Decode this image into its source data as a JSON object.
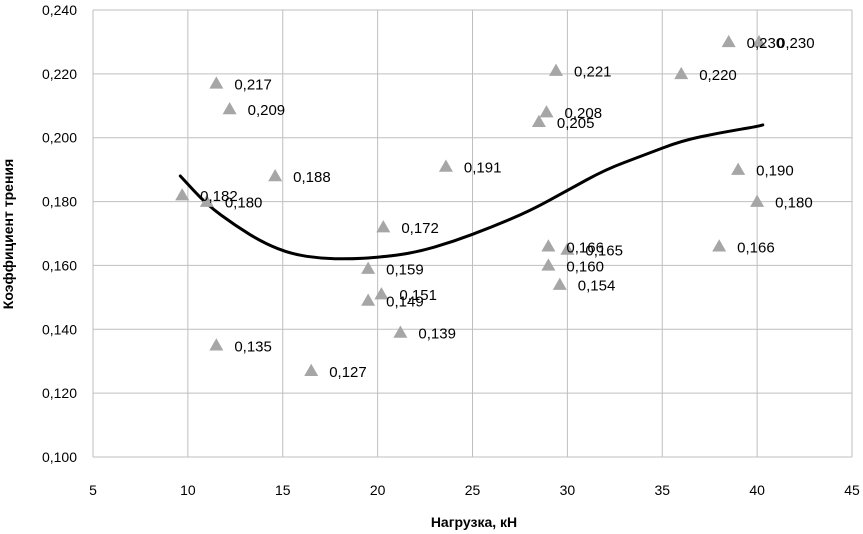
{
  "chart_data": {
    "type": "scatter",
    "title": "",
    "xlabel": "Нагрузка, кН",
    "ylabel": "Коэффициент трения",
    "xlim": [
      5,
      45
    ],
    "ylim": [
      0.1,
      0.24
    ],
    "x_ticks": [
      "5",
      "10",
      "15",
      "20",
      "25",
      "30",
      "35",
      "40",
      "45"
    ],
    "y_ticks": [
      "0,100",
      "0,120",
      "0,140",
      "0,160",
      "0,180",
      "0,200",
      "0,220",
      "0,240"
    ],
    "grid": true,
    "legend": "none",
    "colors": {
      "points": "#a6a6a6",
      "trend": "#000000",
      "grid": "#bfbfbf"
    },
    "series": [
      {
        "points": [
          {
            "x": 9.7,
            "y": 0.182,
            "label": "0,182"
          },
          {
            "x": 11.0,
            "y": 0.18,
            "label": "0,180"
          },
          {
            "x": 11.5,
            "y": 0.217,
            "label": "0,217"
          },
          {
            "x": 12.2,
            "y": 0.209,
            "label": "0,209"
          },
          {
            "x": 11.5,
            "y": 0.135,
            "label": "0,135"
          },
          {
            "x": 14.6,
            "y": 0.188,
            "label": "0,188"
          },
          {
            "x": 16.5,
            "y": 0.127,
            "label": "0,127"
          },
          {
            "x": 19.5,
            "y": 0.159,
            "label": "0,159"
          },
          {
            "x": 19.5,
            "y": 0.149,
            "label": "0,149"
          },
          {
            "x": 20.2,
            "y": 0.151,
            "label": "0,151"
          },
          {
            "x": 20.3,
            "y": 0.172,
            "label": "0,172"
          },
          {
            "x": 21.2,
            "y": 0.139,
            "label": "0,139"
          },
          {
            "x": 23.6,
            "y": 0.191,
            "label": "0,191"
          },
          {
            "x": 28.5,
            "y": 0.205,
            "label": "0,205"
          },
          {
            "x": 28.9,
            "y": 0.208,
            "label": "0,208"
          },
          {
            "x": 29.4,
            "y": 0.221,
            "label": "0,221"
          },
          {
            "x": 29.0,
            "y": 0.166,
            "label": "0,166"
          },
          {
            "x": 29.0,
            "y": 0.16,
            "label": "0,160"
          },
          {
            "x": 29.6,
            "y": 0.154,
            "label": "0,154"
          },
          {
            "x": 30.0,
            "y": 0.165,
            "label": "0,165"
          },
          {
            "x": 36.0,
            "y": 0.22,
            "label": "0,220"
          },
          {
            "x": 38.5,
            "y": 0.23,
            "label": "0,230"
          },
          {
            "x": 40.1,
            "y": 0.23,
            "label": "0,230"
          },
          {
            "x": 39.0,
            "y": 0.19,
            "label": "0,190"
          },
          {
            "x": 38.0,
            "y": 0.166,
            "label": "0,166"
          },
          {
            "x": 40.0,
            "y": 0.18,
            "label": "0,180"
          }
        ]
      }
    ],
    "trendline": {
      "type": "polynomial",
      "points": [
        {
          "x": 9.6,
          "y": 0.188
        },
        {
          "x": 11.0,
          "y": 0.179
        },
        {
          "x": 12.5,
          "y": 0.1725
        },
        {
          "x": 14.0,
          "y": 0.167
        },
        {
          "x": 15.5,
          "y": 0.1635
        },
        {
          "x": 17.0,
          "y": 0.1622
        },
        {
          "x": 18.5,
          "y": 0.162
        },
        {
          "x": 20.0,
          "y": 0.1625
        },
        {
          "x": 22.0,
          "y": 0.164
        },
        {
          "x": 24.0,
          "y": 0.1675
        },
        {
          "x": 26.0,
          "y": 0.172
        },
        {
          "x": 28.0,
          "y": 0.177
        },
        {
          "x": 30.0,
          "y": 0.1835
        },
        {
          "x": 32.0,
          "y": 0.19
        },
        {
          "x": 34.0,
          "y": 0.1945
        },
        {
          "x": 36.0,
          "y": 0.199
        },
        {
          "x": 38.0,
          "y": 0.2015
        },
        {
          "x": 40.0,
          "y": 0.2035
        },
        {
          "x": 40.3,
          "y": 0.204
        }
      ]
    }
  }
}
